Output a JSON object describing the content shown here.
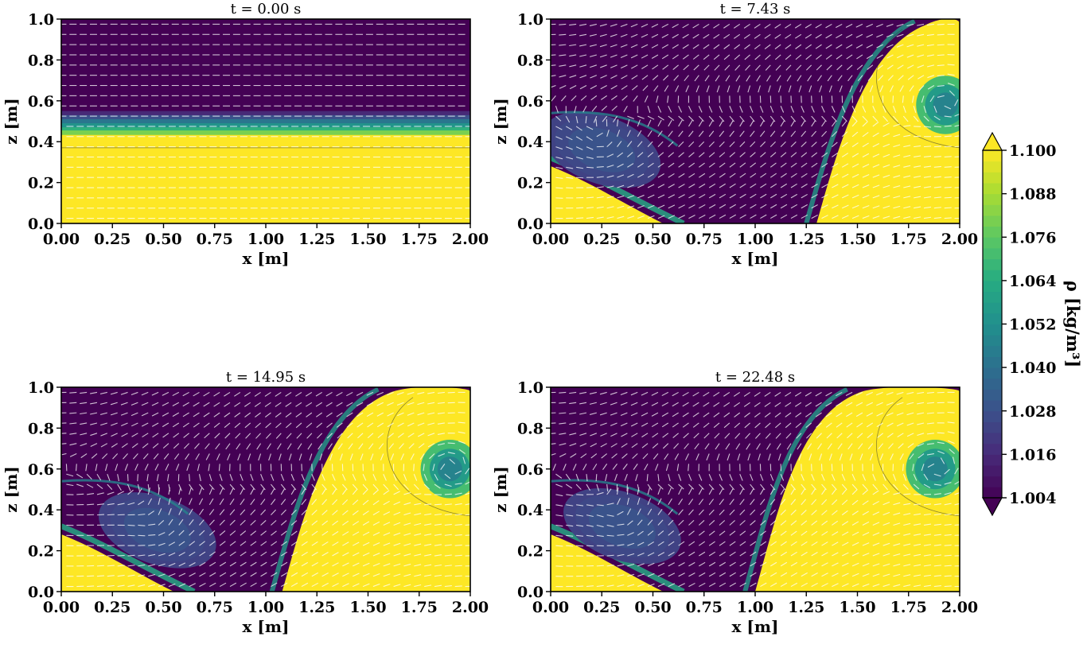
{
  "chart_data": [
    {
      "type": "heatmap",
      "title": "t = 0.00 s",
      "xlabel": "x [m]",
      "ylabel": "z [m]",
      "xlim": [
        0,
        2
      ],
      "ylim": [
        0,
        1
      ],
      "xticks": [
        "0.00",
        "0.25",
        "0.50",
        "0.75",
        "1.00",
        "1.25",
        "1.50",
        "1.75",
        "2.00"
      ],
      "yticks": [
        "0.0",
        "0.2",
        "0.4",
        "0.6",
        "0.8",
        "1.0"
      ],
      "state": "initial",
      "front_bottom_x": null,
      "front_top_x": null,
      "left_vortex": null,
      "right_vortex": null
    },
    {
      "type": "heatmap",
      "title": "t = 7.43 s",
      "xlabel": "x [m]",
      "ylabel": "z [m]",
      "xlim": [
        0,
        2
      ],
      "ylim": [
        0,
        1
      ],
      "xticks": [
        "0.00",
        "0.25",
        "0.50",
        "0.75",
        "1.00",
        "1.25",
        "1.50",
        "1.75",
        "2.00"
      ],
      "yticks": [
        "0.0",
        "0.2",
        "0.4",
        "0.6",
        "0.8",
        "1.0"
      ],
      "state": "mixing",
      "front_bottom_x": 1.3,
      "front_top_x": 1.78,
      "left_vortex": {
        "x": 0.25,
        "z": 0.36
      },
      "right_vortex": {
        "x": 1.93,
        "z": 0.58
      }
    },
    {
      "type": "heatmap",
      "title": "t = 14.95 s",
      "xlabel": "x [m]",
      "ylabel": "z [m]",
      "xlim": [
        0,
        2
      ],
      "ylim": [
        0,
        1
      ],
      "xticks": [
        "0.00",
        "0.25",
        "0.50",
        "0.75",
        "1.00",
        "1.25",
        "1.50",
        "1.75",
        "2.00"
      ],
      "yticks": [
        "0.0",
        "0.2",
        "0.4",
        "0.6",
        "0.8",
        "1.0"
      ],
      "state": "mixing",
      "front_bottom_x": 1.08,
      "front_top_x": 1.55,
      "left_vortex": {
        "x": 0.47,
        "z": 0.3
      },
      "right_vortex": {
        "x": 1.9,
        "z": 0.6
      }
    },
    {
      "type": "heatmap",
      "title": "t = 22.48 s",
      "xlabel": "x [m]",
      "ylabel": "z [m]",
      "xlim": [
        0,
        2
      ],
      "ylim": [
        0,
        1
      ],
      "xticks": [
        "0.00",
        "0.25",
        "0.50",
        "0.75",
        "1.00",
        "1.25",
        "1.50",
        "1.75",
        "2.00"
      ],
      "yticks": [
        "0.0",
        "0.2",
        "0.4",
        "0.6",
        "0.8",
        "1.0"
      ],
      "state": "mixing",
      "front_bottom_x": 1.0,
      "front_top_x": 1.45,
      "left_vortex": {
        "x": 0.35,
        "z": 0.32
      },
      "right_vortex": {
        "x": 1.88,
        "z": 0.6
      }
    }
  ],
  "colorbar": {
    "label": "ρ [kg/m³]",
    "range": [
      1.004,
      1.1
    ],
    "ticks": [
      "1.100",
      "1.088",
      "1.076",
      "1.064",
      "1.052",
      "1.040",
      "1.028",
      "1.016",
      "1.004"
    ],
    "colormap": "viridis",
    "extend": "both"
  },
  "colors": {
    "low": "#440154",
    "high": "#fde725",
    "arrows": "#ffffff"
  }
}
